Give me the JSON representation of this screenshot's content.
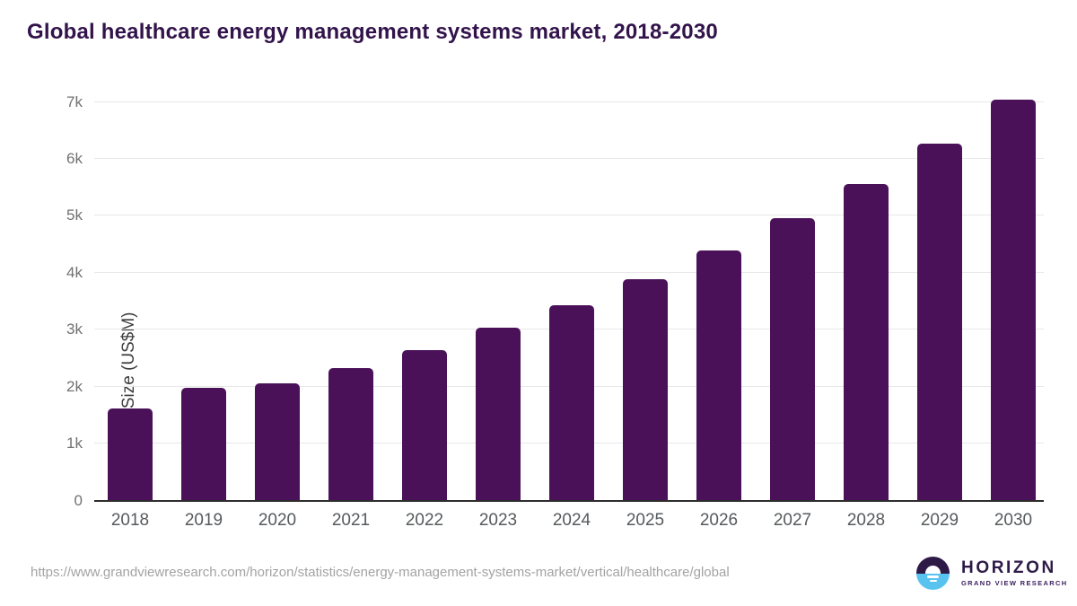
{
  "page": {
    "title": "Global healthcare energy management systems market, 2018-2030",
    "source_url": "https://www.grandviewresearch.com/horizon/statistics/energy-management-systems-market/vertical/healthcare/global"
  },
  "branding": {
    "name": "HORIZON",
    "subtitle": "GRAND VIEW RESEARCH",
    "icon": "horizon-sunrise-logo",
    "colors": {
      "purple": "#2e1a47",
      "blue": "#59c3f0"
    }
  },
  "chart_data": {
    "type": "bar",
    "title": "Global healthcare energy management systems market, 2018-2030",
    "categories": [
      "2018",
      "2019",
      "2020",
      "2021",
      "2022",
      "2023",
      "2024",
      "2025",
      "2026",
      "2027",
      "2028",
      "2029",
      "2030"
    ],
    "values": [
      1610,
      1970,
      2050,
      2315,
      2630,
      3020,
      3420,
      3885,
      4385,
      4955,
      5555,
      6260,
      7035
    ],
    "xlabel": "",
    "ylabel": "Market Size (US$M)",
    "ylim": [
      0,
      7000
    ],
    "yticks": [
      {
        "label": "0",
        "value": 0
      },
      {
        "label": "1k",
        "value": 1000
      },
      {
        "label": "2k",
        "value": 2000
      },
      {
        "label": "3k",
        "value": 3000
      },
      {
        "label": "4k",
        "value": 4000
      },
      {
        "label": "5k",
        "value": 5000
      },
      {
        "label": "6k",
        "value": 6000
      },
      {
        "label": "7k",
        "value": 7000
      }
    ],
    "grid": "horizontal",
    "legend": "none",
    "bar_color": "#4a1159",
    "gridline_color": "#e8e8e8"
  }
}
